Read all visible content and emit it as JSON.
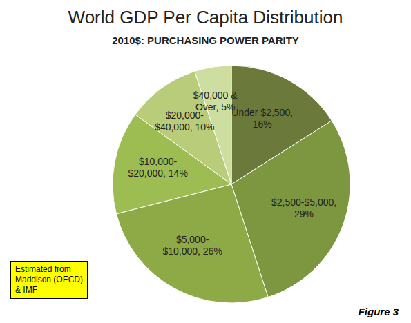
{
  "chart_data": {
    "type": "pie",
    "title": "World GDP Per Capita Distribution",
    "subtitle": "2010$: PURCHASING POWER PARITY",
    "categories": [
      "Under $2,500,\n16%",
      "$2,500-$5,000,\n29%",
      "$5,000-\n$10,000, 26%",
      "$10,000-\n$20,000, 14%",
      "$20,000-\n$40,000, 10%",
      "$40,000 &\nOver, 5%"
    ],
    "values": [
      16,
      29,
      26,
      14,
      10,
      5
    ],
    "colors": [
      "#6b7a3a",
      "#7d9640",
      "#8eaa47",
      "#9dbc52",
      "#b8cc7a",
      "#cddea0"
    ],
    "annotations": [
      {
        "text": "Estimated from\nMaddison (OECD)\n& IMF",
        "color": "#ffff00"
      },
      {
        "text": "Figure 3"
      }
    ]
  }
}
